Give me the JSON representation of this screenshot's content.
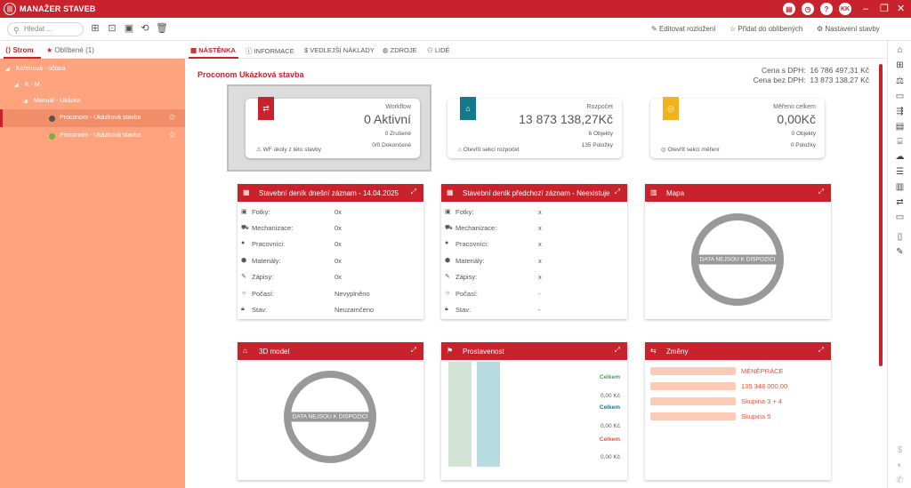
{
  "app": {
    "title": "MANAŽER STAVEB",
    "user": "KK"
  },
  "toolbar": {
    "search_placeholder": "Hledat ...",
    "edit_layout": "Editovat rozložení",
    "add_favorites": "Přidat do oblíbených",
    "settings": "Nastavení stavby"
  },
  "left": {
    "tabs": [
      {
        "label": "Strom"
      },
      {
        "label": "Oblíbené (1)"
      }
    ],
    "tree": [
      {
        "label": "Kořenová - účtara"
      },
      {
        "label": "K - M"
      },
      {
        "label": "Manuál - Ukázka"
      },
      {
        "label": "Proconom - Ukázková stavba"
      },
      {
        "label": "Proconom - Ukázková stavba"
      }
    ]
  },
  "main": {
    "tabs": [
      {
        "label": "NÁSTĚNKA"
      },
      {
        "label": "INFORMACE"
      },
      {
        "label": "VEDLEJŠÍ NÁKLADY"
      },
      {
        "label": "ZDROJE"
      },
      {
        "label": "LIDÉ"
      }
    ],
    "project_title": "Proconom Ukázková stavba",
    "price_with_vat_label": "Cena s DPH:",
    "price_with_vat": "16 786 497,31 Kč",
    "price_without_vat_label": "Cena bez DPH:",
    "price_without_vat": "13 873 138,27 Kč",
    "cards": {
      "workflow": {
        "caption": "Workflow",
        "value": "0 Aktivní",
        "l1": "0 Zrušené",
        "l2": "0/0 Dokončené",
        "footer": "WF úkoly z této stavby",
        "color": "#c8232c"
      },
      "budget": {
        "caption": "Rozpočet",
        "value": "13 873 138,27Kč",
        "l1": "6 Objekty",
        "l2": "135 Položky",
        "footer": "Otevřít sekci rozpočet",
        "color": "#137a8c"
      },
      "measured": {
        "caption": "Měřeno celkem",
        "value": "0,00Kč",
        "l1": "0 Objekty",
        "l2": "0 Položky",
        "footer": "Otevřít sekci měření",
        "color": "#f1b31c"
      }
    },
    "diary_today": {
      "title": "Stavební deník dnešní záznam - 14.04.2025",
      "rows": [
        {
          "label": "Fotky:",
          "value": "0x"
        },
        {
          "label": "Mechanizace:",
          "value": "0x"
        },
        {
          "label": "Pracovníci:",
          "value": "0x"
        },
        {
          "label": "Materiály:",
          "value": "0x"
        },
        {
          "label": "Zápisy:",
          "value": "0x"
        },
        {
          "label": "Počasí:",
          "value": "Nevyplněno"
        },
        {
          "label": "Stav:",
          "value": "Neuzamčeno"
        }
      ]
    },
    "diary_prev": {
      "title": "Stavební deník předchozí záznam - Neexistuje",
      "rows": [
        {
          "label": "Fotky:",
          "value": "x"
        },
        {
          "label": "Mechanizace:",
          "value": "x"
        },
        {
          "label": "Pracovníci:",
          "value": "x"
        },
        {
          "label": "Materiály:",
          "value": "x"
        },
        {
          "label": "Zápisy:",
          "value": "x"
        },
        {
          "label": "Počasí:",
          "value": "-"
        },
        {
          "label": "Stav:",
          "value": "-"
        }
      ]
    },
    "map": {
      "title": "Mapa",
      "nodata": "DATA NEJSOU K DISPOZICI"
    },
    "model3d": {
      "title": "3D model",
      "nodata": "DATA NEJSOU K DISPOZICI"
    },
    "prostavenost": {
      "title": "Prostavenost",
      "items": [
        {
          "label": "Celkem",
          "value": "0,00 Kč",
          "color": "#4a9a5a"
        },
        {
          "label": "Celkem",
          "value": "0,00 Kč",
          "color": "#137a8c"
        },
        {
          "label": "Celkem",
          "value": "0,00 Kč",
          "color": "#e8533a"
        }
      ]
    },
    "zmeny": {
      "title": "Změny",
      "items": [
        {
          "label": "MÉNĚPRÁCE"
        },
        {
          "label": "135 348 000.00"
        },
        {
          "label": "Skupina 3 + 4"
        },
        {
          "label": "Skupina 5"
        }
      ]
    }
  }
}
